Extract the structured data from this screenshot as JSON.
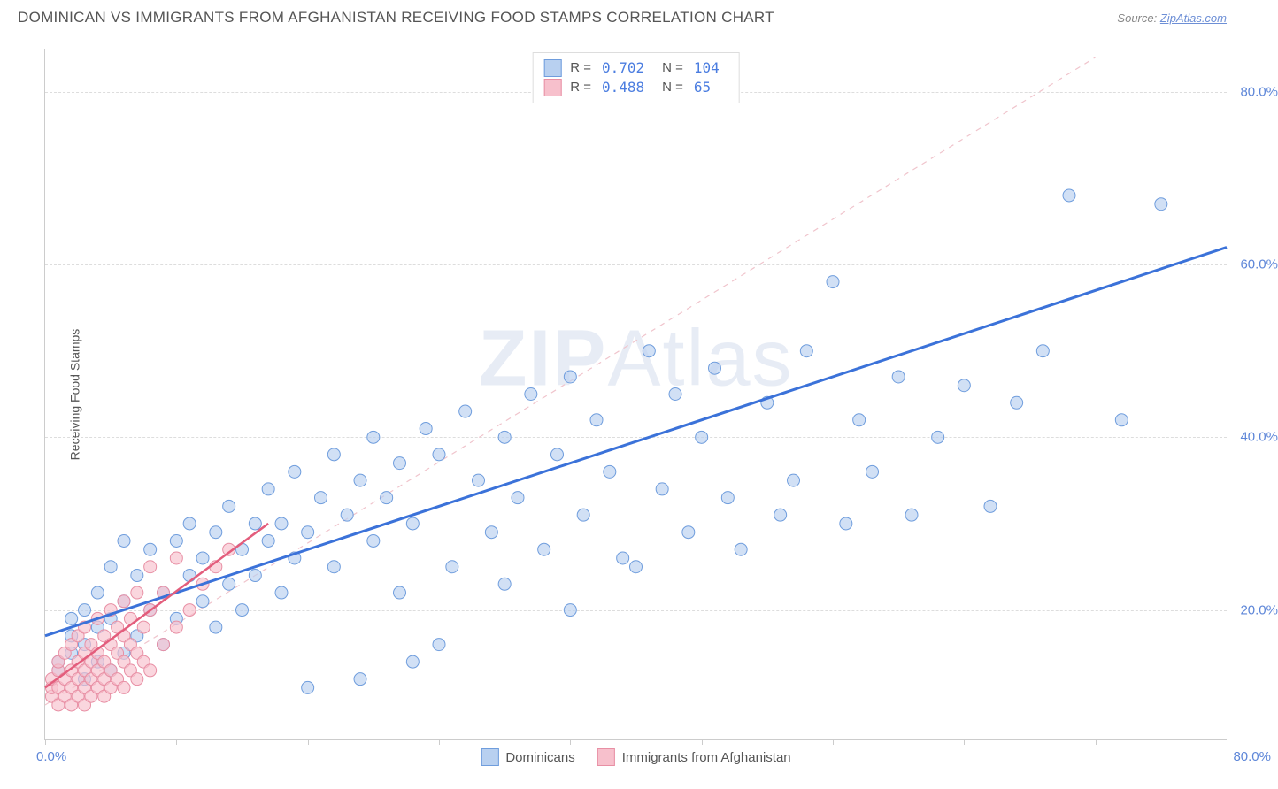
{
  "header": {
    "title": "DOMINICAN VS IMMIGRANTS FROM AFGHANISTAN RECEIVING FOOD STAMPS CORRELATION CHART",
    "source_label": "Source:",
    "source_link": "ZipAtlas.com"
  },
  "chart": {
    "type": "scatter",
    "ylabel": "Receiving Food Stamps",
    "watermark": "ZIPAtlas",
    "xlim": [
      0,
      90
    ],
    "ylim": [
      5,
      85
    ],
    "xtick_positions": [
      0,
      10,
      20,
      30,
      40,
      50,
      60,
      70,
      80
    ],
    "xtick_labels": {
      "left": "0.0%",
      "right": "80.0%"
    },
    "yticks": [
      20.0,
      40.0,
      60.0,
      80.0
    ],
    "ytick_labels": [
      "20.0%",
      "40.0%",
      "60.0%",
      "80.0%"
    ],
    "grid_color": "#dddddd",
    "background_color": "#ffffff",
    "marker_radius": 7,
    "marker_stroke_width": 1,
    "series": [
      {
        "name": "Dominicans",
        "r": "0.702",
        "n": "104",
        "fill": "#b8d0f0",
        "stroke": "#6f9ddd",
        "fill_opacity": 0.65,
        "trend": {
          "x1": 0,
          "y1": 17,
          "x2": 90,
          "y2": 62,
          "stroke": "#3b72d9",
          "width": 3,
          "dash": ""
        },
        "ref": {
          "x1": 0,
          "y1": 9,
          "x2": 80,
          "y2": 84,
          "stroke": "#f0c4cc",
          "width": 1.2,
          "dash": "6,6"
        },
        "points": [
          [
            1,
            13
          ],
          [
            1,
            14
          ],
          [
            2,
            15
          ],
          [
            2,
            17
          ],
          [
            2,
            19
          ],
          [
            3,
            12
          ],
          [
            3,
            16
          ],
          [
            3,
            20
          ],
          [
            4,
            14
          ],
          [
            4,
            18
          ],
          [
            4,
            22
          ],
          [
            5,
            13
          ],
          [
            5,
            19
          ],
          [
            5,
            25
          ],
          [
            6,
            15
          ],
          [
            6,
            21
          ],
          [
            6,
            28
          ],
          [
            7,
            17
          ],
          [
            7,
            24
          ],
          [
            8,
            20
          ],
          [
            8,
            27
          ],
          [
            9,
            16
          ],
          [
            9,
            22
          ],
          [
            10,
            28
          ],
          [
            10,
            19
          ],
          [
            11,
            24
          ],
          [
            11,
            30
          ],
          [
            12,
            21
          ],
          [
            12,
            26
          ],
          [
            13,
            29
          ],
          [
            13,
            18
          ],
          [
            14,
            23
          ],
          [
            14,
            32
          ],
          [
            15,
            27
          ],
          [
            15,
            20
          ],
          [
            16,
            30
          ],
          [
            16,
            24
          ],
          [
            17,
            28
          ],
          [
            17,
            34
          ],
          [
            18,
            22
          ],
          [
            18,
            30
          ],
          [
            19,
            26
          ],
          [
            19,
            36
          ],
          [
            20,
            11
          ],
          [
            20,
            29
          ],
          [
            21,
            33
          ],
          [
            22,
            25
          ],
          [
            22,
            38
          ],
          [
            23,
            31
          ],
          [
            24,
            12
          ],
          [
            24,
            35
          ],
          [
            25,
            28
          ],
          [
            25,
            40
          ],
          [
            26,
            33
          ],
          [
            27,
            22
          ],
          [
            27,
            37
          ],
          [
            28,
            14
          ],
          [
            28,
            30
          ],
          [
            29,
            41
          ],
          [
            30,
            16
          ],
          [
            30,
            38
          ],
          [
            31,
            25
          ],
          [
            32,
            43
          ],
          [
            33,
            35
          ],
          [
            34,
            29
          ],
          [
            35,
            40
          ],
          [
            35,
            23
          ],
          [
            36,
            33
          ],
          [
            37,
            45
          ],
          [
            38,
            27
          ],
          [
            39,
            38
          ],
          [
            40,
            20
          ],
          [
            40,
            47
          ],
          [
            41,
            31
          ],
          [
            42,
            42
          ],
          [
            43,
            36
          ],
          [
            44,
            26
          ],
          [
            45,
            25
          ],
          [
            46,
            50
          ],
          [
            47,
            34
          ],
          [
            48,
            45
          ],
          [
            49,
            29
          ],
          [
            50,
            40
          ],
          [
            51,
            48
          ],
          [
            52,
            33
          ],
          [
            53,
            27
          ],
          [
            55,
            44
          ],
          [
            56,
            31
          ],
          [
            57,
            35
          ],
          [
            58,
            50
          ],
          [
            60,
            58
          ],
          [
            61,
            30
          ],
          [
            62,
            42
          ],
          [
            63,
            36
          ],
          [
            65,
            47
          ],
          [
            66,
            31
          ],
          [
            68,
            40
          ],
          [
            70,
            46
          ],
          [
            72,
            32
          ],
          [
            74,
            44
          ],
          [
            76,
            50
          ],
          [
            78,
            68
          ],
          [
            82,
            42
          ],
          [
            85,
            67
          ]
        ]
      },
      {
        "name": "Immigrants from Afghanistan",
        "r": "0.488",
        "n": "65",
        "fill": "#f7c0cc",
        "stroke": "#e88fa4",
        "fill_opacity": 0.65,
        "trend": {
          "x1": 0,
          "y1": 11,
          "x2": 17,
          "y2": 30,
          "stroke": "#e35d7c",
          "width": 2.5,
          "dash": ""
        },
        "points": [
          [
            0.5,
            10
          ],
          [
            0.5,
            11
          ],
          [
            0.5,
            12
          ],
          [
            1,
            9
          ],
          [
            1,
            11
          ],
          [
            1,
            13
          ],
          [
            1,
            14
          ],
          [
            1.5,
            10
          ],
          [
            1.5,
            12
          ],
          [
            1.5,
            15
          ],
          [
            2,
            9
          ],
          [
            2,
            11
          ],
          [
            2,
            13
          ],
          [
            2,
            16
          ],
          [
            2.5,
            10
          ],
          [
            2.5,
            12
          ],
          [
            2.5,
            14
          ],
          [
            2.5,
            17
          ],
          [
            3,
            9
          ],
          [
            3,
            11
          ],
          [
            3,
            13
          ],
          [
            3,
            15
          ],
          [
            3,
            18
          ],
          [
            3.5,
            10
          ],
          [
            3.5,
            12
          ],
          [
            3.5,
            14
          ],
          [
            3.5,
            16
          ],
          [
            4,
            11
          ],
          [
            4,
            13
          ],
          [
            4,
            15
          ],
          [
            4,
            19
          ],
          [
            4.5,
            10
          ],
          [
            4.5,
            12
          ],
          [
            4.5,
            14
          ],
          [
            4.5,
            17
          ],
          [
            5,
            11
          ],
          [
            5,
            13
          ],
          [
            5,
            16
          ],
          [
            5,
            20
          ],
          [
            5.5,
            12
          ],
          [
            5.5,
            15
          ],
          [
            5.5,
            18
          ],
          [
            6,
            11
          ],
          [
            6,
            14
          ],
          [
            6,
            17
          ],
          [
            6,
            21
          ],
          [
            6.5,
            13
          ],
          [
            6.5,
            16
          ],
          [
            6.5,
            19
          ],
          [
            7,
            12
          ],
          [
            7,
            15
          ],
          [
            7,
            22
          ],
          [
            7.5,
            14
          ],
          [
            7.5,
            18
          ],
          [
            8,
            13
          ],
          [
            8,
            20
          ],
          [
            8,
            25
          ],
          [
            9,
            16
          ],
          [
            9,
            22
          ],
          [
            10,
            18
          ],
          [
            10,
            26
          ],
          [
            11,
            20
          ],
          [
            12,
            23
          ],
          [
            13,
            25
          ],
          [
            14,
            27
          ]
        ]
      }
    ]
  }
}
